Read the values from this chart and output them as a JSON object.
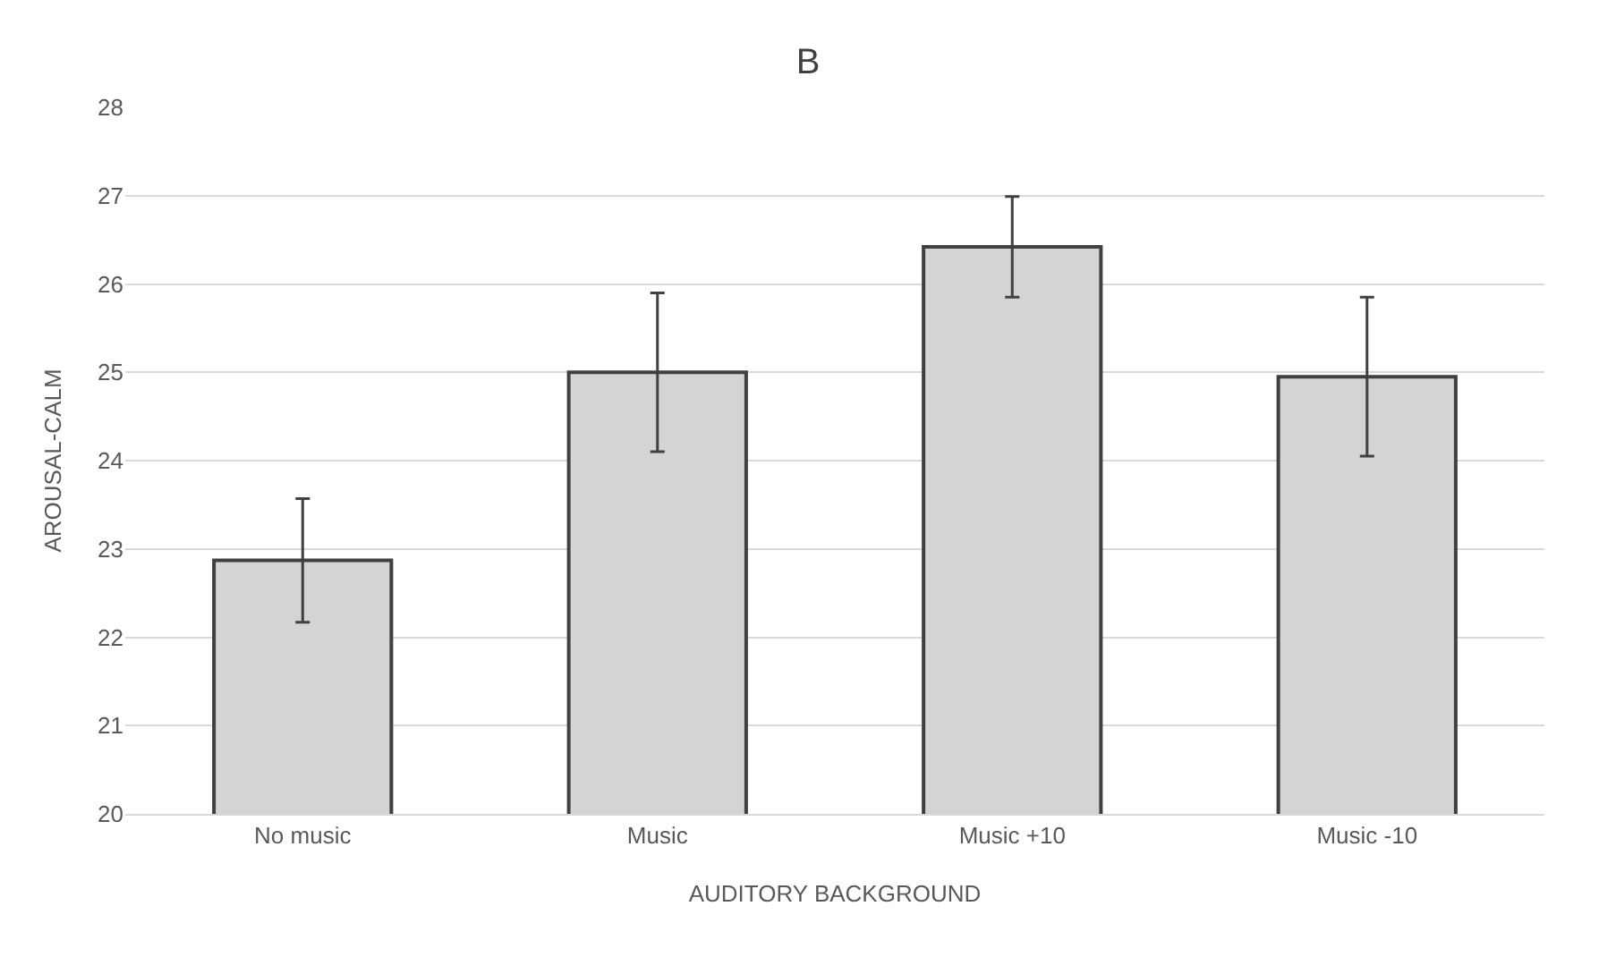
{
  "chart_data": {
    "type": "bar",
    "title": "B",
    "xlabel": "AUDITORY BACKGROUND",
    "ylabel": "AROUSAL-CALM",
    "categories": [
      "No music",
      "Music",
      "Music +10",
      "Music -10"
    ],
    "values": [
      22.87,
      25.0,
      26.42,
      24.95
    ],
    "errors": [
      0.7,
      0.9,
      0.57,
      0.9
    ],
    "color": "#d4d4d4",
    "ylim": [
      20,
      28
    ],
    "yticks": [
      20,
      21,
      22,
      23,
      24,
      25,
      26,
      27,
      28
    ],
    "grid": "y"
  }
}
